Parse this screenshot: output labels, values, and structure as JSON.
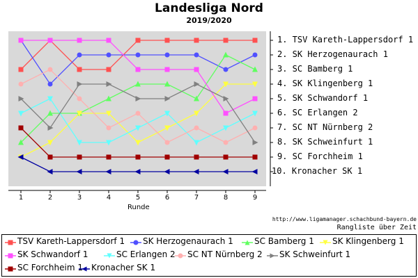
{
  "chart_data": {
    "type": "line",
    "title": "Landesliga Nord",
    "subtitle": "2019/2020",
    "xlabel": "Runde",
    "x": [
      1,
      2,
      3,
      4,
      5,
      6,
      7,
      8,
      9
    ],
    "ylim": [
      1,
      10
    ],
    "y_inverted": true,
    "grid": false,
    "legend_placement": "bottom",
    "final_ranking": [
      "1. TSV Kareth-Lappersdorf 1",
      "2. SK Herzogenaurach 1",
      "3. SC Bamberg 1",
      "4. SK Klingenberg 1",
      "5. SK Schwandorf 1",
      "6. SC Erlangen 2",
      "7. SC NT Nürnberg 2",
      "8. SK Schweinfurt 1",
      "9. SC Forchheim 1",
      "10. Kronacher SK 1"
    ],
    "series": [
      {
        "name": "TSV Kareth-Lappersdorf 1",
        "color": "#ff5050",
        "marker": "square",
        "values": [
          3,
          1,
          3,
          3,
          1,
          1,
          1,
          1,
          1
        ]
      },
      {
        "name": "SK Herzogenaurach 1",
        "color": "#5050ff",
        "marker": "circle",
        "values": [
          1,
          4,
          2,
          2,
          2,
          2,
          2,
          3,
          2
        ]
      },
      {
        "name": "SC Bamberg 1",
        "color": "#60ff60",
        "marker": "triangle-up",
        "values": [
          8,
          6,
          6,
          5,
          4,
          4,
          5,
          2,
          3
        ]
      },
      {
        "name": "SK Klingenberg 1",
        "color": "#ffff40",
        "marker": "triangle-down",
        "values": [
          9,
          8,
          6,
          6,
          8,
          7,
          6,
          4,
          4
        ]
      },
      {
        "name": "SK Schwandorf 1",
        "color": "#ff50ff",
        "marker": "square",
        "values": [
          1,
          1,
          1,
          1,
          3,
          3,
          3,
          6,
          5
        ]
      },
      {
        "name": "SC Erlangen 2",
        "color": "#60ffff",
        "marker": "triangle-down",
        "values": [
          6,
          5,
          8,
          8,
          7,
          6,
          8,
          7,
          6
        ]
      },
      {
        "name": "SC NT Nürnberg 2",
        "color": "#ffb0b0",
        "marker": "circle",
        "values": [
          4,
          3,
          5,
          7,
          6,
          8,
          7,
          8,
          7
        ]
      },
      {
        "name": "SK Schweinfurt 1",
        "color": "#808080",
        "marker": "triangle-right",
        "values": [
          5,
          7,
          4,
          4,
          5,
          5,
          4,
          5,
          8
        ]
      },
      {
        "name": "SC Forchheim 1",
        "color": "#a00000",
        "marker": "square",
        "values": [
          7,
          9,
          9,
          9,
          9,
          9,
          9,
          9,
          9
        ]
      },
      {
        "name": "Kronacher SK 1",
        "color": "#0000a0",
        "marker": "triangle-left",
        "values": [
          9,
          10,
          10,
          10,
          10,
          10,
          10,
          10,
          10
        ]
      }
    ]
  },
  "source_url": "http://www.ligamanager.schachbund-bayern.de",
  "caption": "Rangliste über Zeit"
}
